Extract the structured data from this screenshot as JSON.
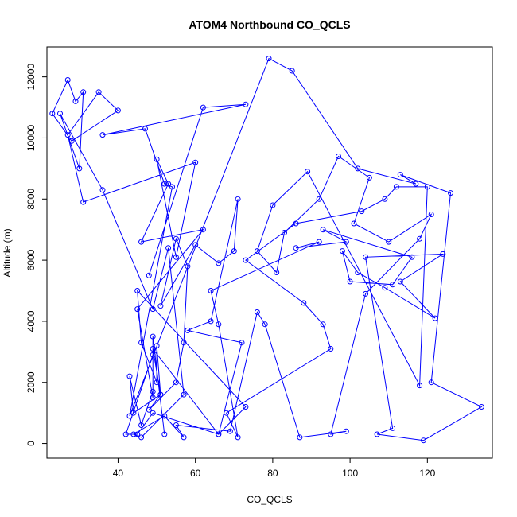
{
  "chart_data": {
    "type": "line",
    "title": "ATOM4 Northbound CO_QCLS",
    "xlabel": "CO_QCLS",
    "ylabel": "Altitude (m)",
    "xlim": [
      21.6,
      136.8
    ],
    "ylim": [
      -480,
      12980
    ],
    "xticks": [
      40,
      60,
      80,
      100,
      120
    ],
    "yticks": [
      0,
      2000,
      4000,
      6000,
      8000,
      10000,
      12000
    ],
    "xtick_labels": [
      "40",
      "60",
      "80",
      "100",
      "120"
    ],
    "ytick_labels": [
      "0",
      "2000",
      "4000",
      "6000",
      "8000",
      "10000",
      "12000"
    ],
    "series": [
      {
        "color": "#0000ff",
        "marker": "open-circle",
        "x": [
          48,
          62,
          73,
          36,
          47,
          52,
          54,
          43,
          79,
          85,
          102,
          117,
          113,
          126,
          121,
          134,
          119,
          107,
          111,
          104,
          124,
          113,
          122,
          109,
          102,
          98,
          100,
          111,
          116,
          93,
          99,
          86,
          92,
          64,
          66,
          71,
          68,
          95,
          93,
          88,
          73,
          86,
          103,
          109,
          112,
          120,
          118,
          89,
          80,
          76,
          81,
          83,
          92,
          97,
          105,
          101,
          110,
          121,
          118,
          104,
          95,
          99,
          87,
          78,
          76,
          69,
          55,
          57,
          52,
          44,
          46,
          57,
          53,
          49,
          36,
          25,
          30,
          31,
          29,
          27,
          23,
          28,
          40,
          35,
          27,
          31,
          60,
          55,
          50,
          53,
          46,
          62,
          45,
          49,
          49,
          42,
          45,
          49,
          66,
          73,
          45,
          46,
          50,
          50,
          51,
          49,
          66,
          72,
          58,
          64,
          71,
          70,
          66,
          60,
          51,
          55,
          58,
          57,
          55,
          48,
          51,
          44,
          43,
          46,
          49,
          49,
          52
        ],
        "y": [
          5500,
          11000,
          11100,
          10100,
          10300,
          8500,
          8400,
          900,
          12600,
          12200,
          9000,
          8500,
          8800,
          8200,
          2000,
          1200,
          100,
          300,
          500,
          6100,
          6200,
          5300,
          4100,
          5100,
          5600,
          6300,
          5300,
          5200,
          6100,
          7000,
          6600,
          6400,
          6600,
          5000,
          3900,
          200,
          1000,
          3100,
          3900,
          4600,
          6000,
          7200,
          7600,
          8000,
          8400,
          8400,
          1900,
          8900,
          7800,
          6300,
          5600,
          6900,
          8000,
          9400,
          8700,
          7200,
          6600,
          7500,
          6700,
          4900,
          300,
          400,
          200,
          3900,
          4300,
          400,
          600,
          200,
          900,
          300,
          200,
          1600,
          6400,
          4400,
          8300,
          10800,
          9000,
          11500,
          11200,
          11900,
          10800,
          9900,
          10900,
          11500,
          10100,
          7900,
          9200,
          6100,
          9300,
          8500,
          6600,
          7000,
          4400,
          1500,
          2900,
          300,
          300,
          1000,
          300,
          1200,
          5000,
          3300,
          2000,
          3200,
          1600,
          3100,
          300,
          3300,
          3700,
          4000,
          8000,
          6300,
          5900,
          6500,
          4500,
          6700,
          5800,
          3300,
          2000,
          1100,
          1600,
          1000,
          2200,
          600,
          1700,
          3500,
          300
        ]
      }
    ]
  }
}
